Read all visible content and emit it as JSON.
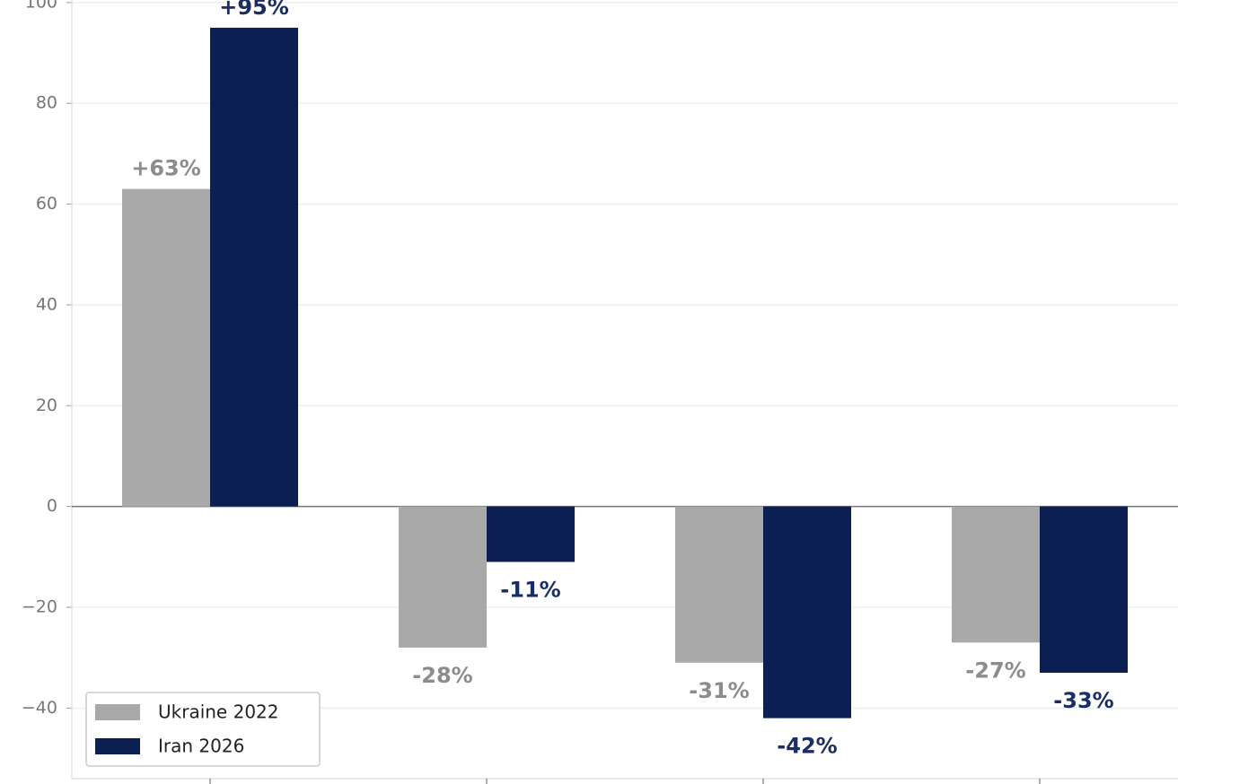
{
  "chart_data": {
    "type": "bar",
    "categories": [
      null,
      null,
      null,
      null
    ],
    "series": [
      {
        "name": "Ukraine 2022",
        "color": "#a9a9a9",
        "label_color": "#8c8c8c",
        "values": [
          63,
          -28,
          -31,
          -27
        ],
        "value_labels": [
          "+63%",
          "-28%",
          "-31%",
          "-27%"
        ]
      },
      {
        "name": "Iran 2026",
        "color": "#0b1f52",
        "label_color": "#1a2d66",
        "values": [
          95,
          -11,
          -42,
          -33
        ],
        "value_labels": [
          "+95%",
          "-11%",
          "-42%",
          "-33%"
        ]
      }
    ],
    "ylim": [
      -54,
      100.5
    ],
    "yticks": [
      {
        "value": -40,
        "label": "−40"
      },
      {
        "value": -20,
        "label": "−20"
      },
      0,
      20,
      40,
      60,
      80,
      100
    ],
    "grid": true,
    "legend": "lower left"
  }
}
